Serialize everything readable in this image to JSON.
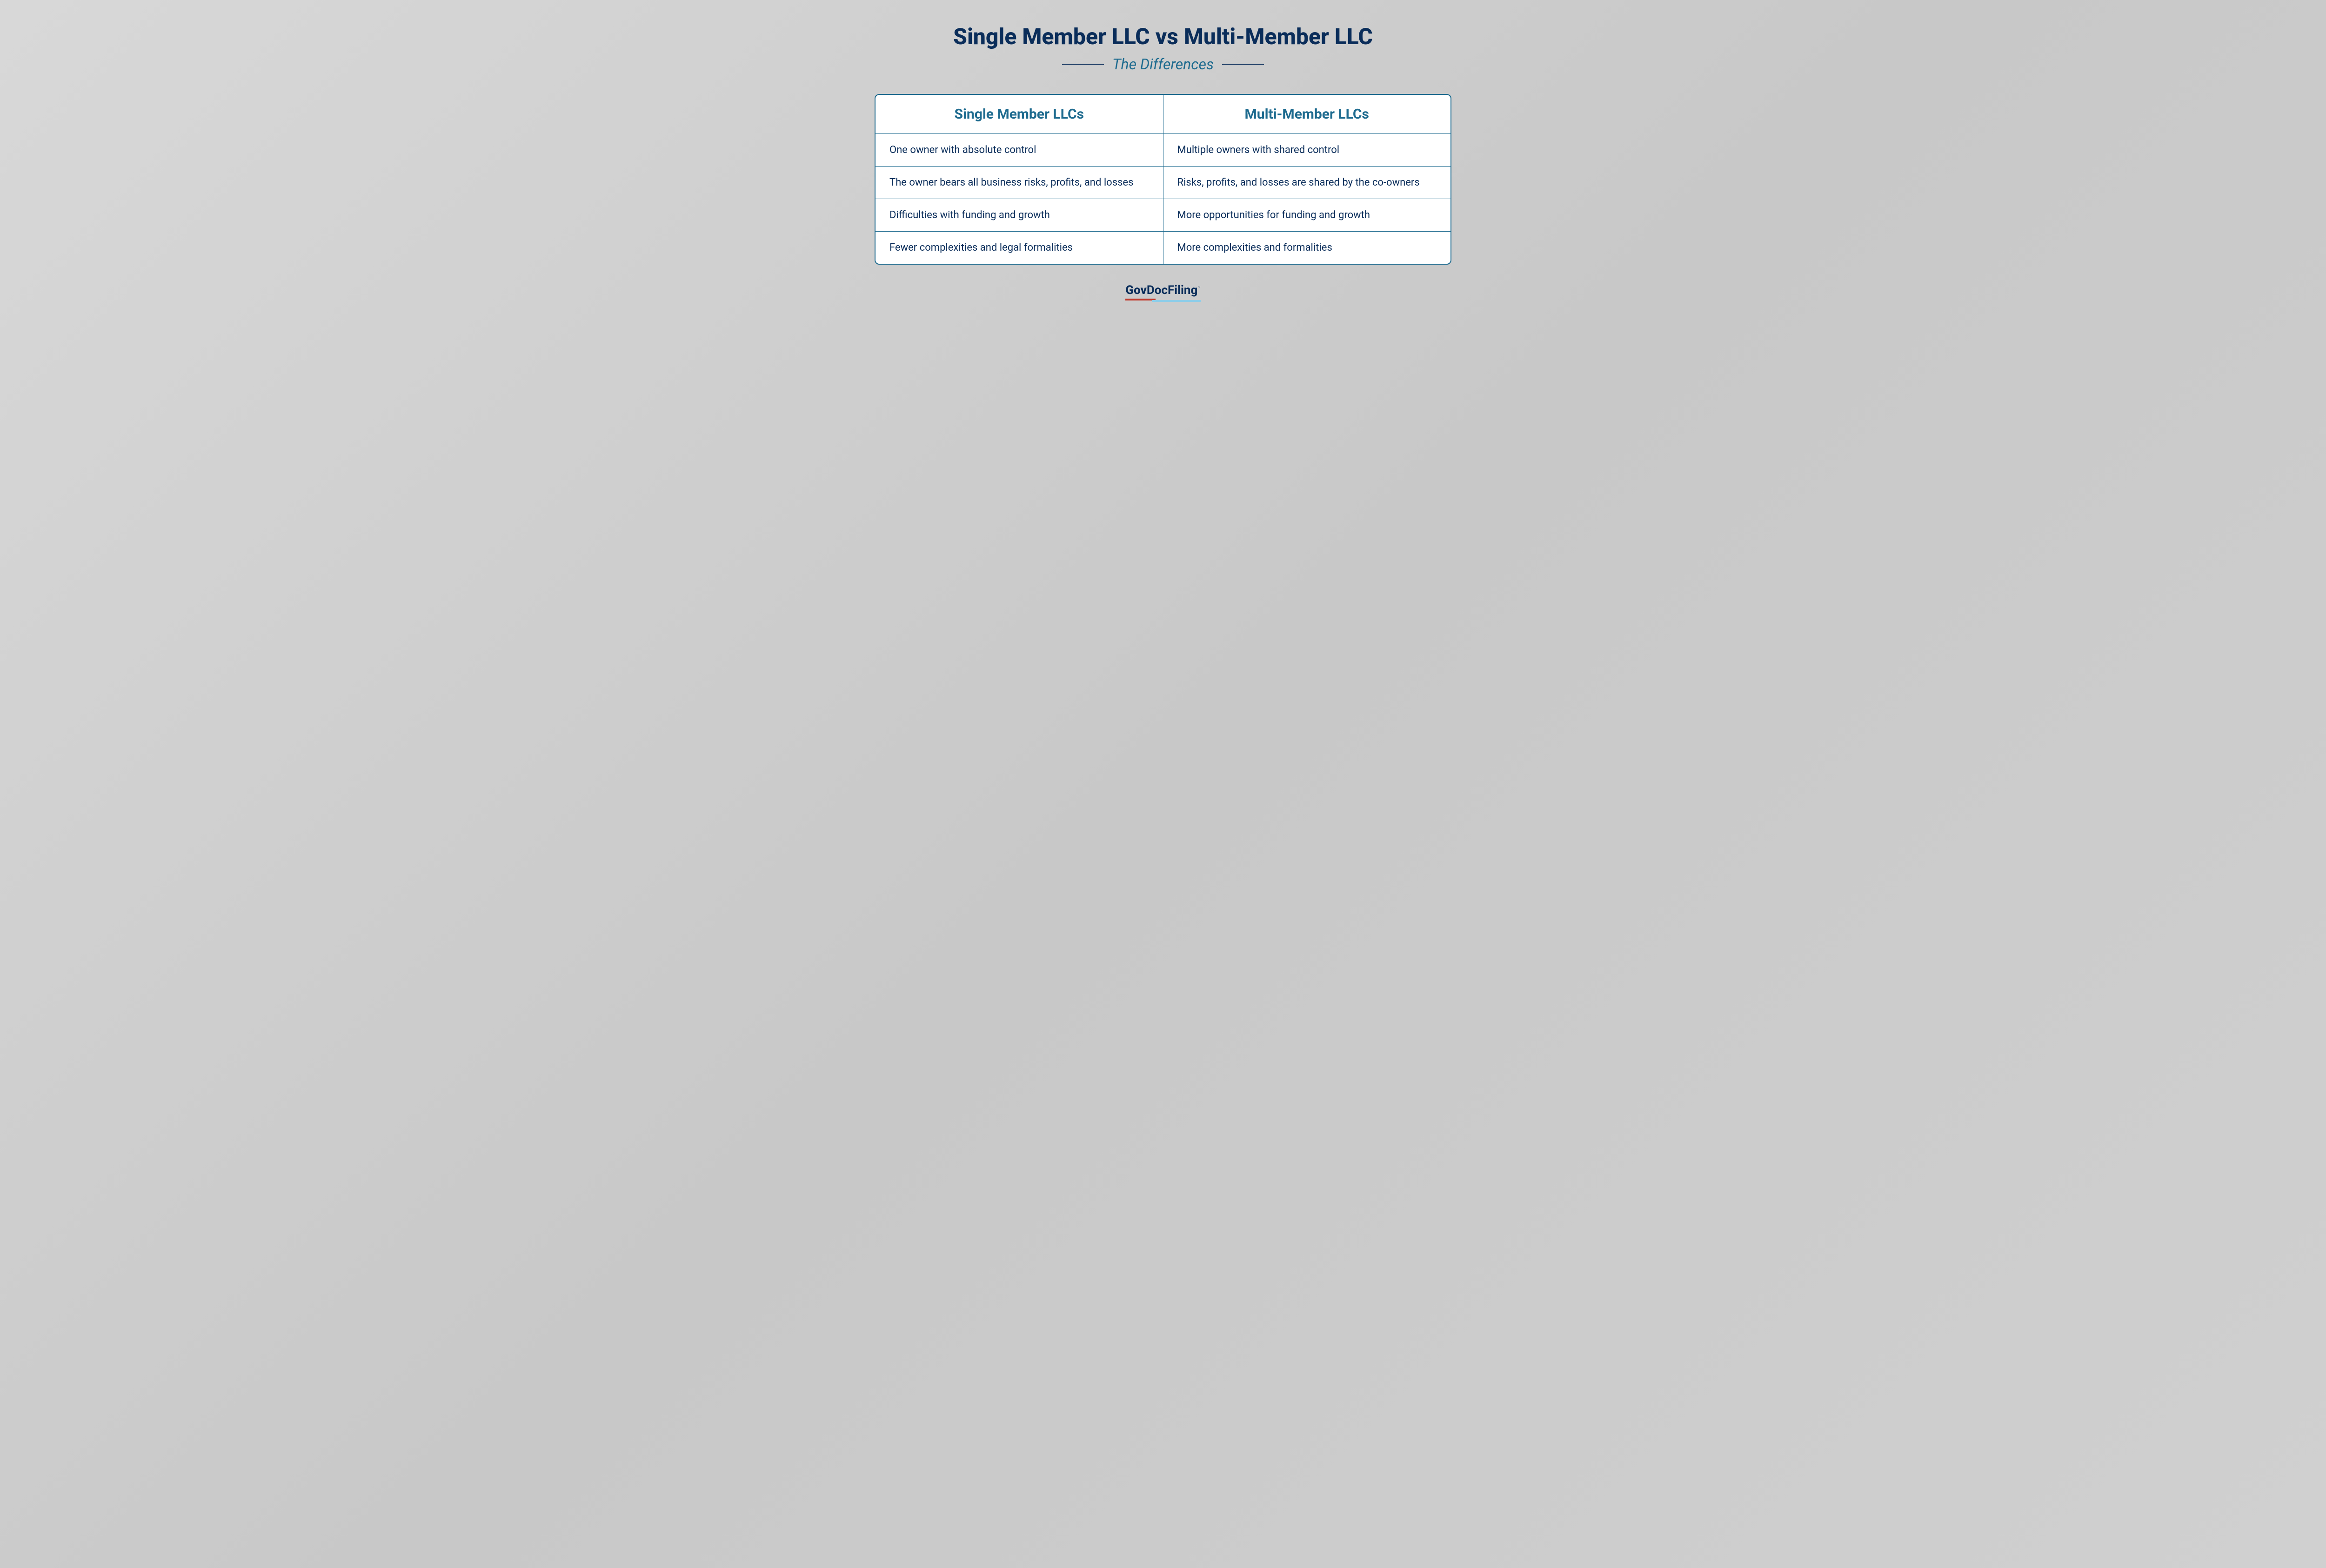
{
  "title": "Single Member LLC vs Multi-Member LLC",
  "subtitle": "The Differences",
  "colors": {
    "title_color": "#0a2d5a",
    "subtitle_color": "#1e6b8f",
    "border_color": "#1e6b8f",
    "cell_text_color": "#0a2d5a",
    "header_text_color": "#1e6b8f",
    "background_gradient_start": "#d8d8d8",
    "background_gradient_end": "#d0d0d0",
    "cell_background": "#ffffff",
    "logo_red": "#c0392b",
    "logo_blue": "#8fcde8"
  },
  "typography": {
    "title_fontsize": 48,
    "title_weight": 800,
    "subtitle_fontsize": 32,
    "subtitle_style": "italic",
    "header_fontsize": 30,
    "header_weight": 700,
    "cell_fontsize": 22,
    "logo_fontsize": 26
  },
  "table": {
    "columns": [
      "Single Member LLCs",
      "Multi-Member LLCs"
    ],
    "rows": [
      [
        "One owner with absolute control",
        "Multiple owners with shared control"
      ],
      [
        "The owner bears all business risks, profits, and losses",
        "Risks, profits, and losses are shared by the co-owners"
      ],
      [
        "Difficulties with funding and growth",
        "More opportunities for funding and growth"
      ],
      [
        "Fewer complexities and legal formalities",
        "More complexities and formalities"
      ]
    ],
    "border_width": 2,
    "border_radius": 10
  },
  "logo": {
    "part1": "Gov",
    "part2": "DocFiling",
    "tm": "™"
  }
}
